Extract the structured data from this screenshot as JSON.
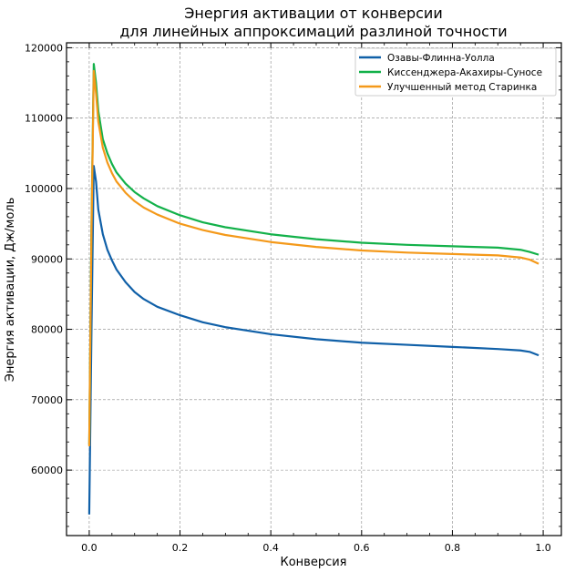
{
  "chart_data": {
    "type": "line",
    "title_lines": [
      "Энергия активации от конверсии",
      "для линейных аппроксимаций разлиной точности"
    ],
    "xlabel": "Конверсия",
    "ylabel": "Энергия активации, Дж/моль",
    "xlim": [
      -0.05,
      1.04
    ],
    "ylim": [
      50700,
      120700
    ],
    "xticks": [
      0.0,
      0.2,
      0.4,
      0.6,
      0.8,
      1.0
    ],
    "xtick_labels": [
      "0.0",
      "0.2",
      "0.4",
      "0.6",
      "0.8",
      "1.0"
    ],
    "yticks": [
      60000,
      70000,
      80000,
      90000,
      100000,
      110000,
      120000
    ],
    "ytick_labels": [
      "60000",
      "70000",
      "80000",
      "90000",
      "100000",
      "110000",
      "120000"
    ],
    "grid": true,
    "legend_position": "top-right",
    "series": [
      {
        "name": "Озавы-Флинна-Уолла",
        "color": "#1060a8",
        "x": [
          0.0,
          0.005,
          0.01,
          0.015,
          0.02,
          0.03,
          0.04,
          0.05,
          0.06,
          0.08,
          0.1,
          0.12,
          0.15,
          0.2,
          0.25,
          0.3,
          0.4,
          0.5,
          0.6,
          0.7,
          0.8,
          0.9,
          0.95,
          0.97,
          0.99
        ],
        "y": [
          53700,
          80000,
          103200,
          101000,
          97000,
          93500,
          91300,
          89800,
          88500,
          86700,
          85300,
          84300,
          83200,
          82000,
          81000,
          80300,
          79300,
          78600,
          78100,
          77800,
          77500,
          77200,
          77000,
          76800,
          76300
        ]
      },
      {
        "name": "Киссенджера-Акахиры-Суносе",
        "color": "#13b14a",
        "x": [
          0.0,
          0.005,
          0.01,
          0.015,
          0.02,
          0.03,
          0.04,
          0.05,
          0.06,
          0.08,
          0.1,
          0.12,
          0.15,
          0.2,
          0.25,
          0.3,
          0.4,
          0.5,
          0.6,
          0.7,
          0.8,
          0.9,
          0.95,
          0.97,
          0.99
        ],
        "y": [
          63600,
          95000,
          117700,
          115000,
          111000,
          107000,
          105000,
          103500,
          102300,
          100700,
          99500,
          98600,
          97500,
          96200,
          95200,
          94500,
          93500,
          92800,
          92300,
          92000,
          91800,
          91600,
          91300,
          91000,
          90600
        ]
      },
      {
        "name": "Улучшенный метод Старинка",
        "color": "#f4991a",
        "x": [
          0.0,
          0.005,
          0.01,
          0.015,
          0.02,
          0.03,
          0.04,
          0.05,
          0.06,
          0.08,
          0.1,
          0.12,
          0.15,
          0.2,
          0.25,
          0.3,
          0.4,
          0.5,
          0.6,
          0.7,
          0.8,
          0.9,
          0.95,
          0.97,
          0.99
        ],
        "y": [
          63400,
          94000,
          116700,
          113500,
          109500,
          105800,
          103700,
          102200,
          101000,
          99400,
          98200,
          97300,
          96300,
          95000,
          94100,
          93400,
          92400,
          91700,
          91200,
          90900,
          90700,
          90500,
          90200,
          89900,
          89300
        ]
      }
    ]
  }
}
